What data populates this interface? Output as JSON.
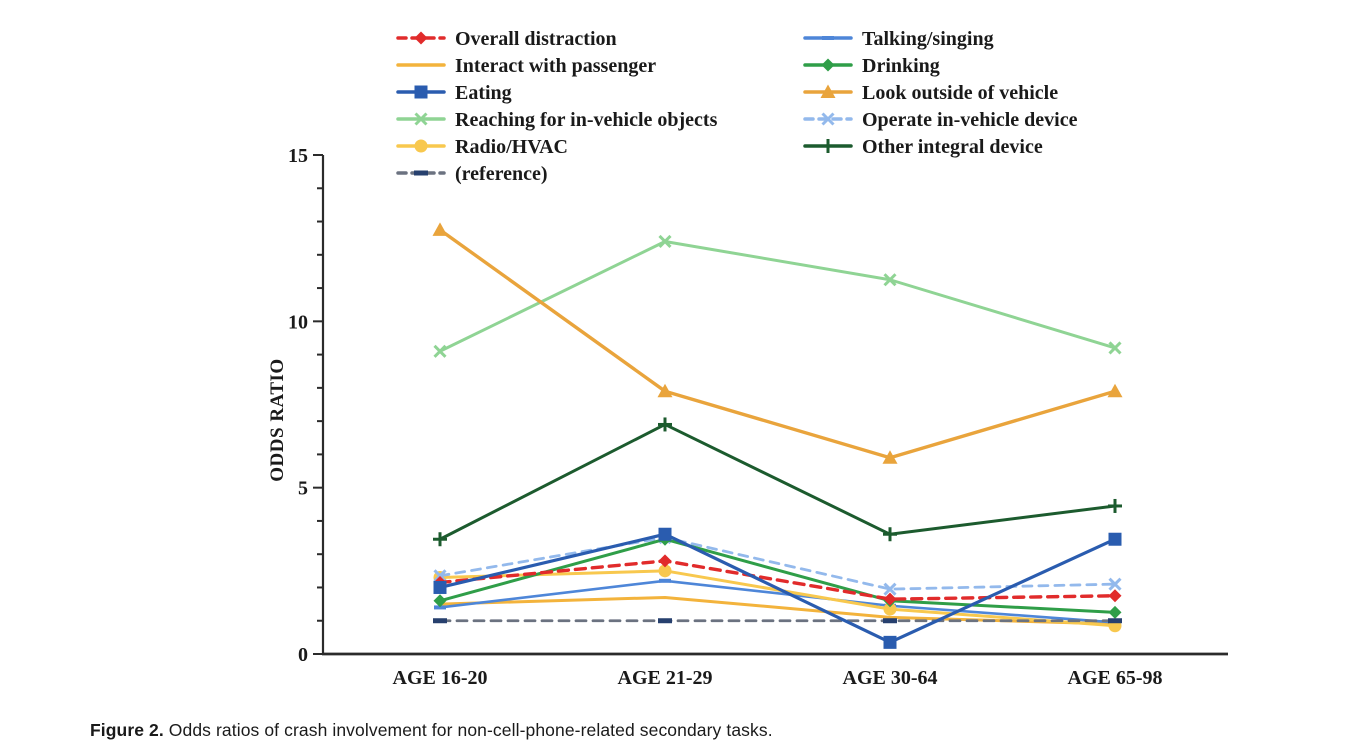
{
  "figure": {
    "caption_label": "Figure 2.",
    "caption_text": " Odds ratios of crash involvement for non-cell-phone-related secondary tasks."
  },
  "chart_data": {
    "type": "line",
    "title": "",
    "xlabel": "",
    "ylabel": "ODDS RATIO",
    "ylim": [
      0,
      15
    ],
    "yticks_major": [
      0,
      5,
      10,
      15
    ],
    "ytick_minor_step": 1,
    "grid": false,
    "legend_position": "top-two-columns",
    "categories": [
      "AGE 16-20",
      "AGE 21-29",
      "AGE 30-64",
      "AGE 65-98"
    ],
    "series": [
      {
        "name": "Overall distraction",
        "values": [
          2.15,
          2.8,
          1.65,
          1.75
        ],
        "color": "#E12B2B",
        "line": "dashed",
        "marker": "diamond",
        "width": 3.4,
        "legend_col": 0,
        "legend_row": 0
      },
      {
        "name": "Interact with passenger",
        "values": [
          1.5,
          1.7,
          1.1,
          0.9
        ],
        "color": "#F3B33C",
        "line": "solid",
        "marker": "none",
        "width": 3.0,
        "legend_col": 0,
        "legend_row": 1
      },
      {
        "name": "Eating",
        "values": [
          2.0,
          3.6,
          0.35,
          3.45
        ],
        "color": "#2A5CAF",
        "line": "solid",
        "marker": "square",
        "width": 3.2,
        "legend_col": 0,
        "legend_row": 2
      },
      {
        "name": "Reaching for in-vehicle objects",
        "values": [
          9.1,
          12.4,
          11.25,
          9.2
        ],
        "color": "#8FD494",
        "line": "solid",
        "marker": "x",
        "width": 3.0,
        "legend_col": 0,
        "legend_row": 3
      },
      {
        "name": "Radio/HVAC",
        "values": [
          2.3,
          2.5,
          1.35,
          0.85
        ],
        "color": "#F8C84E",
        "line": "solid",
        "marker": "circle",
        "width": 3.0,
        "legend_col": 0,
        "legend_row": 4
      },
      {
        "name": "(reference)",
        "values": [
          1.0,
          1.0,
          1.0,
          1.0
        ],
        "color": "#6B7280",
        "marker_color": "#27406E",
        "line": "dashed",
        "marker": "refdash",
        "width": 2.8,
        "legend_col": 0,
        "legend_row": 5
      },
      {
        "name": "Talking/singing",
        "values": [
          1.4,
          2.2,
          1.45,
          0.95
        ],
        "color": "#4E86D8",
        "line": "solid",
        "marker": "dash",
        "width": 2.6,
        "legend_col": 1,
        "legend_row": 0
      },
      {
        "name": "Drinking",
        "values": [
          1.6,
          3.45,
          1.6,
          1.25
        ],
        "color": "#2F9E48",
        "line": "solid",
        "marker": "diamond",
        "width": 3.0,
        "legend_col": 1,
        "legend_row": 1
      },
      {
        "name": "Look outside of vehicle",
        "values": [
          12.75,
          7.9,
          5.9,
          7.9
        ],
        "color": "#E9A43C",
        "line": "solid",
        "marker": "triangle",
        "width": 3.4,
        "legend_col": 1,
        "legend_row": 2
      },
      {
        "name": "Operate in-vehicle device",
        "values": [
          2.35,
          3.5,
          1.95,
          2.1
        ],
        "color": "#93B9EC",
        "line": "dashdot",
        "marker": "x",
        "width": 2.8,
        "legend_col": 1,
        "legend_row": 3
      },
      {
        "name": "Other integral device",
        "values": [
          3.45,
          6.9,
          3.6,
          4.45
        ],
        "color": "#1C5B2E",
        "line": "solid",
        "marker": "plus",
        "width": 3.0,
        "legend_col": 1,
        "legend_row": 4
      }
    ]
  }
}
